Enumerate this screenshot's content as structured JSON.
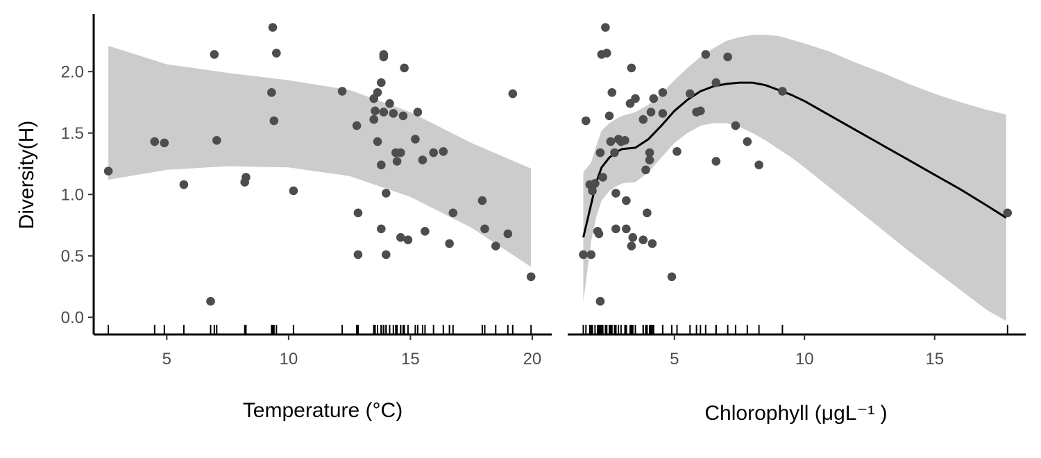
{
  "chart_data": [
    {
      "type": "scatter",
      "xlabel": "Temperature (°C)",
      "ylabel": "Diversity(H)",
      "xlim": [
        2.0,
        20.8
      ],
      "ylim": [
        -0.14,
        2.47
      ],
      "xticks": [
        5,
        10,
        15,
        20
      ],
      "yticks": [
        0.0,
        0.5,
        1.0,
        1.5,
        2.0
      ],
      "ytick_labels": [
        "0.0",
        "0.5",
        "1.0",
        "1.5",
        "2.0"
      ],
      "grid": false,
      "rug": true,
      "point_color": "#4d4d4d",
      "ribbon_color": "#cccccc",
      "smooth_ribbon": {
        "x": [
          2.6,
          5.0,
          7.5,
          10.0,
          12.5,
          15.0,
          17.5,
          19.95
        ],
        "lower": [
          1.12,
          1.2,
          1.23,
          1.22,
          1.15,
          0.98,
          0.73,
          0.41
        ],
        "upper": [
          2.21,
          2.06,
          1.99,
          1.93,
          1.85,
          1.67,
          1.42,
          1.21
        ]
      },
      "points": [
        {
          "x": 2.6,
          "y": 1.19
        },
        {
          "x": 4.5,
          "y": 1.43
        },
        {
          "x": 4.9,
          "y": 1.42
        },
        {
          "x": 5.7,
          "y": 1.08
        },
        {
          "x": 6.8,
          "y": 0.13
        },
        {
          "x": 6.95,
          "y": 2.14
        },
        {
          "x": 7.05,
          "y": 1.44
        },
        {
          "x": 8.2,
          "y": 1.1
        },
        {
          "x": 8.25,
          "y": 1.14
        },
        {
          "x": 9.35,
          "y": 2.36
        },
        {
          "x": 9.3,
          "y": 1.83
        },
        {
          "x": 9.4,
          "y": 1.6
        },
        {
          "x": 9.5,
          "y": 2.15
        },
        {
          "x": 10.2,
          "y": 1.03
        },
        {
          "x": 12.2,
          "y": 1.84
        },
        {
          "x": 12.8,
          "y": 1.56
        },
        {
          "x": 12.85,
          "y": 0.85
        },
        {
          "x": 12.85,
          "y": 0.51
        },
        {
          "x": 13.5,
          "y": 1.78
        },
        {
          "x": 13.55,
          "y": 1.68
        },
        {
          "x": 13.5,
          "y": 1.61
        },
        {
          "x": 13.65,
          "y": 1.83
        },
        {
          "x": 13.65,
          "y": 1.43
        },
        {
          "x": 13.8,
          "y": 1.91
        },
        {
          "x": 13.8,
          "y": 1.24
        },
        {
          "x": 13.8,
          "y": 0.72
        },
        {
          "x": 13.9,
          "y": 2.14
        },
        {
          "x": 13.9,
          "y": 2.12
        },
        {
          "x": 13.9,
          "y": 1.67
        },
        {
          "x": 14.0,
          "y": 1.01
        },
        {
          "x": 14.0,
          "y": 0.51
        },
        {
          "x": 14.15,
          "y": 1.74
        },
        {
          "x": 14.3,
          "y": 1.66
        },
        {
          "x": 14.4,
          "y": 1.34
        },
        {
          "x": 14.45,
          "y": 1.27
        },
        {
          "x": 14.6,
          "y": 1.34
        },
        {
          "x": 14.6,
          "y": 0.65
        },
        {
          "x": 14.7,
          "y": 1.64
        },
        {
          "x": 14.75,
          "y": 2.03
        },
        {
          "x": 14.9,
          "y": 0.63
        },
        {
          "x": 15.2,
          "y": 1.45
        },
        {
          "x": 15.3,
          "y": 1.67
        },
        {
          "x": 15.5,
          "y": 1.28
        },
        {
          "x": 15.6,
          "y": 0.7
        },
        {
          "x": 15.95,
          "y": 1.34
        },
        {
          "x": 16.35,
          "y": 1.35
        },
        {
          "x": 16.6,
          "y": 0.6
        },
        {
          "x": 16.75,
          "y": 0.85
        },
        {
          "x": 17.95,
          "y": 0.95
        },
        {
          "x": 18.05,
          "y": 0.72
        },
        {
          "x": 18.5,
          "y": 0.58
        },
        {
          "x": 19.0,
          "y": 0.68
        },
        {
          "x": 19.2,
          "y": 1.82
        },
        {
          "x": 19.95,
          "y": 0.33
        }
      ]
    },
    {
      "type": "scatter",
      "xlabel": "Chlorophyll (μgL⁻¹ )",
      "ylabel": "",
      "xlim": [
        0.9,
        18.5
      ],
      "ylim": [
        -0.14,
        2.47
      ],
      "xticks": [
        5,
        10,
        15
      ],
      "grid": false,
      "rug": true,
      "point_color": "#4d4d4d",
      "ribbon_color": "#cccccc",
      "line_color": "#000000",
      "smooth_line": {
        "x": [
          1.5,
          1.8,
          2.0,
          2.2,
          2.5,
          2.8,
          3.0,
          3.5,
          4.0,
          4.5,
          5.0,
          5.5,
          6.0,
          6.5,
          7.0,
          7.5,
          8.0,
          8.5,
          9.0,
          9.5,
          10.0,
          11.0,
          12.0,
          13.0,
          14.0,
          15.0,
          16.0,
          17.0,
          17.75
        ],
        "y": [
          0.65,
          0.92,
          1.1,
          1.22,
          1.3,
          1.35,
          1.37,
          1.38,
          1.45,
          1.56,
          1.68,
          1.77,
          1.84,
          1.88,
          1.9,
          1.91,
          1.91,
          1.89,
          1.85,
          1.81,
          1.76,
          1.64,
          1.52,
          1.4,
          1.28,
          1.16,
          1.04,
          0.91,
          0.81
        ]
      },
      "smooth_ribbon": {
        "x": [
          1.5,
          1.8,
          2.0,
          2.2,
          2.5,
          2.8,
          3.0,
          3.5,
          4.0,
          4.5,
          5.0,
          5.5,
          6.0,
          6.5,
          7.0,
          7.5,
          8.0,
          8.5,
          9.0,
          9.5,
          10.0,
          11.0,
          12.0,
          13.0,
          14.0,
          15.0,
          16.0,
          17.0,
          17.75
        ],
        "lower": [
          0.12,
          0.62,
          0.82,
          0.95,
          1.03,
          1.07,
          1.09,
          1.1,
          1.18,
          1.3,
          1.42,
          1.5,
          1.56,
          1.58,
          1.58,
          1.55,
          1.5,
          1.44,
          1.37,
          1.3,
          1.22,
          1.05,
          0.88,
          0.71,
          0.54,
          0.38,
          0.22,
          0.06,
          -0.03
        ],
        "upper": [
          1.18,
          1.26,
          1.4,
          1.52,
          1.58,
          1.62,
          1.64,
          1.67,
          1.73,
          1.82,
          1.93,
          2.03,
          2.12,
          2.19,
          2.25,
          2.28,
          2.3,
          2.3,
          2.29,
          2.26,
          2.23,
          2.16,
          2.07,
          1.99,
          1.9,
          1.82,
          1.75,
          1.69,
          1.65
        ]
      },
      "points": [
        {
          "x": 1.5,
          "y": 0.51
        },
        {
          "x": 1.6,
          "y": 1.6
        },
        {
          "x": 1.75,
          "y": 1.08
        },
        {
          "x": 1.8,
          "y": 0.51
        },
        {
          "x": 1.85,
          "y": 1.03
        },
        {
          "x": 1.95,
          "y": 1.09
        },
        {
          "x": 2.05,
          "y": 0.7
        },
        {
          "x": 2.1,
          "y": 0.68
        },
        {
          "x": 2.15,
          "y": 1.34
        },
        {
          "x": 2.15,
          "y": 0.13
        },
        {
          "x": 2.2,
          "y": 2.14
        },
        {
          "x": 2.25,
          "y": 1.14
        },
        {
          "x": 2.35,
          "y": 2.36
        },
        {
          "x": 2.4,
          "y": 2.15
        },
        {
          "x": 2.5,
          "y": 1.64
        },
        {
          "x": 2.55,
          "y": 1.43
        },
        {
          "x": 2.6,
          "y": 1.83
        },
        {
          "x": 2.7,
          "y": 1.34
        },
        {
          "x": 2.75,
          "y": 1.01
        },
        {
          "x": 2.75,
          "y": 0.72
        },
        {
          "x": 2.85,
          "y": 1.45
        },
        {
          "x": 2.95,
          "y": 1.43
        },
        {
          "x": 3.1,
          "y": 1.44
        },
        {
          "x": 3.15,
          "y": 0.95
        },
        {
          "x": 3.15,
          "y": 0.72
        },
        {
          "x": 3.3,
          "y": 1.74
        },
        {
          "x": 3.35,
          "y": 2.03
        },
        {
          "x": 3.35,
          "y": 0.58
        },
        {
          "x": 3.4,
          "y": 0.65
        },
        {
          "x": 3.5,
          "y": 1.78
        },
        {
          "x": 3.8,
          "y": 1.61
        },
        {
          "x": 3.8,
          "y": 0.63
        },
        {
          "x": 3.9,
          "y": 1.2
        },
        {
          "x": 3.95,
          "y": 0.85
        },
        {
          "x": 4.05,
          "y": 1.34
        },
        {
          "x": 4.05,
          "y": 1.28
        },
        {
          "x": 4.1,
          "y": 1.67
        },
        {
          "x": 4.15,
          "y": 0.6
        },
        {
          "x": 4.2,
          "y": 1.78
        },
        {
          "x": 4.55,
          "y": 1.66
        },
        {
          "x": 4.55,
          "y": 1.83
        },
        {
          "x": 4.9,
          "y": 0.33
        },
        {
          "x": 5.1,
          "y": 1.35
        },
        {
          "x": 5.6,
          "y": 1.82
        },
        {
          "x": 5.85,
          "y": 1.67
        },
        {
          "x": 6.0,
          "y": 1.68
        },
        {
          "x": 6.2,
          "y": 2.14
        },
        {
          "x": 6.6,
          "y": 1.91
        },
        {
          "x": 6.6,
          "y": 1.27
        },
        {
          "x": 7.05,
          "y": 2.12
        },
        {
          "x": 7.35,
          "y": 1.56
        },
        {
          "x": 7.8,
          "y": 1.43
        },
        {
          "x": 8.25,
          "y": 1.24
        },
        {
          "x": 9.15,
          "y": 1.84
        },
        {
          "x": 17.8,
          "y": 0.85
        }
      ]
    }
  ]
}
